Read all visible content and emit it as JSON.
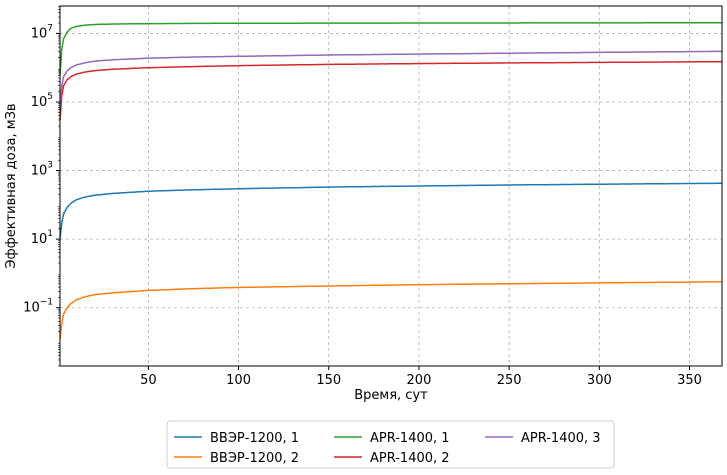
{
  "chart_data": {
    "type": "line",
    "xlabel": "Время, сут",
    "ylabel": "Эффективная доза, мЗв",
    "xlim": [
      1,
      368
    ],
    "ylim_log10": [
      -2.7,
      7.8
    ],
    "yscale": "log",
    "grid": true,
    "legend_position": "bottom-outside",
    "x_ticks": [
      50,
      100,
      150,
      200,
      250,
      300,
      350
    ],
    "x_tick_labels": [
      "50",
      "100",
      "150",
      "200",
      "250",
      "300",
      "350"
    ],
    "y_ticks_log10": [
      -1,
      1,
      3,
      5,
      7
    ],
    "y_tick_labels": [
      {
        "base": "10",
        "exp": "−1"
      },
      {
        "base": "10",
        "exp": "1"
      },
      {
        "base": "10",
        "exp": "3"
      },
      {
        "base": "10",
        "exp": "5"
      },
      {
        "base": "10",
        "exp": "7"
      }
    ],
    "x": [
      1,
      2,
      3,
      5,
      7,
      10,
      15,
      20,
      30,
      50,
      75,
      100,
      150,
      200,
      250,
      300,
      350,
      368
    ],
    "series": [
      {
        "name": "ВВЭР-1200, 1",
        "color": "#1f77b4",
        "values": [
          10,
          30,
          55,
          85,
          110,
          140,
          170,
          190,
          215,
          250,
          275,
          295,
          330,
          355,
          380,
          400,
          420,
          425
        ]
      },
      {
        "name": "ВВЭР-1200, 2",
        "color": "#ff7f0e",
        "values": [
          0.012,
          0.035,
          0.065,
          0.1,
          0.13,
          0.17,
          0.21,
          0.24,
          0.27,
          0.32,
          0.36,
          0.39,
          0.43,
          0.47,
          0.5,
          0.53,
          0.56,
          0.57
        ]
      },
      {
        "name": "APR-1400, 1",
        "color": "#2ca02c",
        "values": [
          600000,
          3500000,
          7000000,
          11000000,
          14000000,
          16000000,
          17500000,
          18200000,
          18800000,
          19300000,
          19600000,
          19800000,
          20000000,
          20100000,
          20200000,
          20300000,
          20400000,
          20400000
        ]
      },
      {
        "name": "APR-1400, 2",
        "color": "#d62728",
        "values": [
          30000,
          150000,
          300000,
          450000,
          550000,
          650000,
          750000,
          820000,
          900000,
          1000000,
          1080000,
          1150000,
          1250000,
          1320000,
          1380000,
          1430000,
          1480000,
          1500000
        ]
      },
      {
        "name": "APR-1400, 3",
        "color": "#9467bd",
        "values": [
          60000,
          300000,
          550000,
          800000,
          1000000,
          1200000,
          1400000,
          1550000,
          1700000,
          1900000,
          2050000,
          2150000,
          2350000,
          2500000,
          2650000,
          2800000,
          2950000,
          3000000
        ]
      }
    ]
  }
}
